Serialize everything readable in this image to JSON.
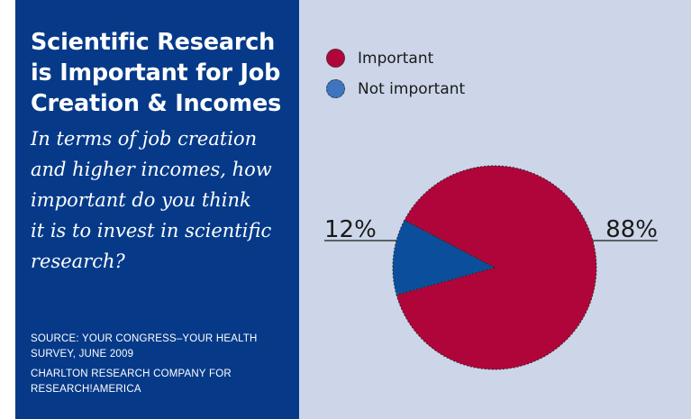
{
  "panel": {
    "title_lines": [
      "Scientific Research",
      "is Important for Job",
      "Creation & Incomes"
    ],
    "question_lines": [
      "In terms of job creation",
      "and higher incomes, how",
      "important do you think",
      "it is to invest in scientific",
      "research?"
    ],
    "source_lines": [
      "SOURCE: YOUR CONGRESS–YOUR HEALTH",
      "SURVEY, JUNE 2009"
    ],
    "credit_lines": [
      "CHARLTON RESEARCH COMPANY FOR",
      "RESEARCH!AMERICA"
    ]
  },
  "colors": {
    "left_panel": "#063a89",
    "right_panel": "#ccd6e8",
    "important": "#b0053a",
    "not_important": "#0b4f9c",
    "not_important_legend": "#3f74c0"
  },
  "chart_data": {
    "type": "pie",
    "title": "Scientific Research is Important for Job Creation & Incomes",
    "legend_position": "top-left",
    "slices": [
      {
        "name": "Important",
        "value": 88,
        "label": "88%"
      },
      {
        "name": "Not important",
        "value": 12,
        "label": "12%"
      }
    ]
  }
}
